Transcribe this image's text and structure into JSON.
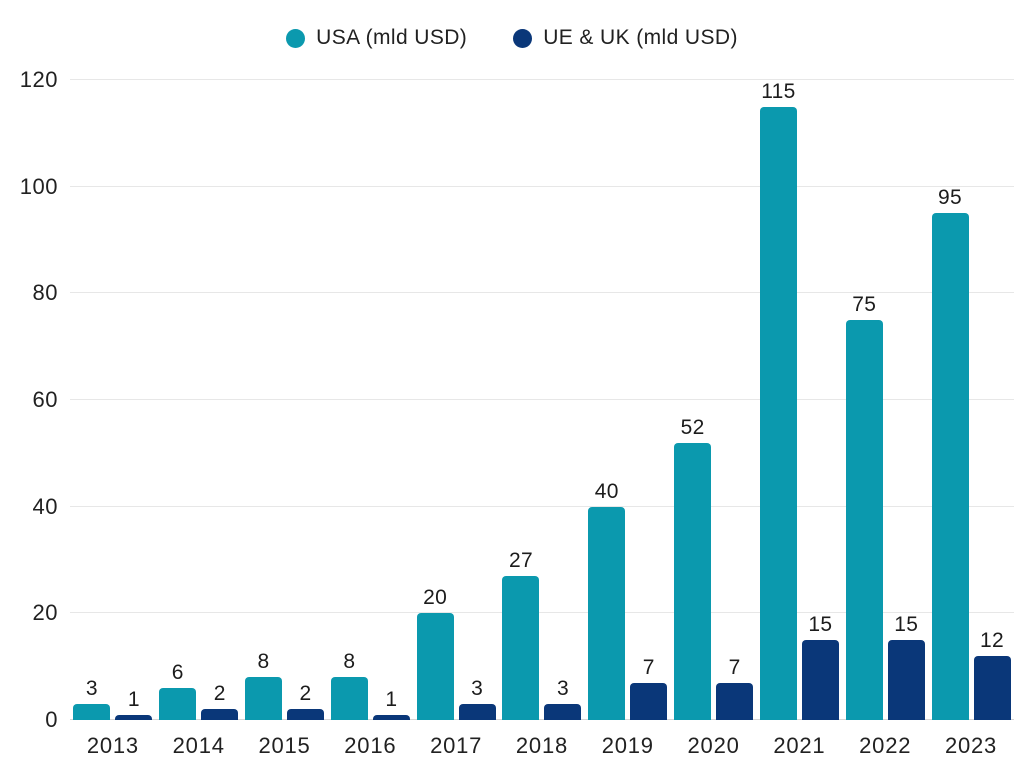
{
  "legend": {
    "items": [
      {
        "label": "USA (mld USD)",
        "color": "#0b99ae"
      },
      {
        "label": "UE & UK (mld USD)",
        "color": "#0a3779"
      }
    ]
  },
  "chart_data": {
    "type": "bar",
    "title": "",
    "xlabel": "",
    "ylabel": "",
    "categories": [
      "2013",
      "2014",
      "2015",
      "2016",
      "2017",
      "2018",
      "2019",
      "2020",
      "2021",
      "2022",
      "2023"
    ],
    "series": [
      {
        "name": "USA (mld USD)",
        "color": "#0b99ae",
        "values": [
          3,
          6,
          8,
          8,
          20,
          27,
          40,
          52,
          115,
          75,
          95
        ]
      },
      {
        "name": "UE & UK (mld USD)",
        "color": "#0a3779",
        "values": [
          1,
          2,
          2,
          1,
          3,
          3,
          7,
          7,
          15,
          15,
          12
        ]
      }
    ],
    "ylim": [
      0,
      120
    ],
    "yticks": [
      0,
      20,
      40,
      60,
      80,
      100,
      120
    ],
    "grid": true,
    "legend_position": "top",
    "value_labels": true
  },
  "colors": {
    "background": "#ffffff",
    "grid": "#e7e7e7",
    "axis_line": "#d5d5d5",
    "text": "#212121"
  }
}
